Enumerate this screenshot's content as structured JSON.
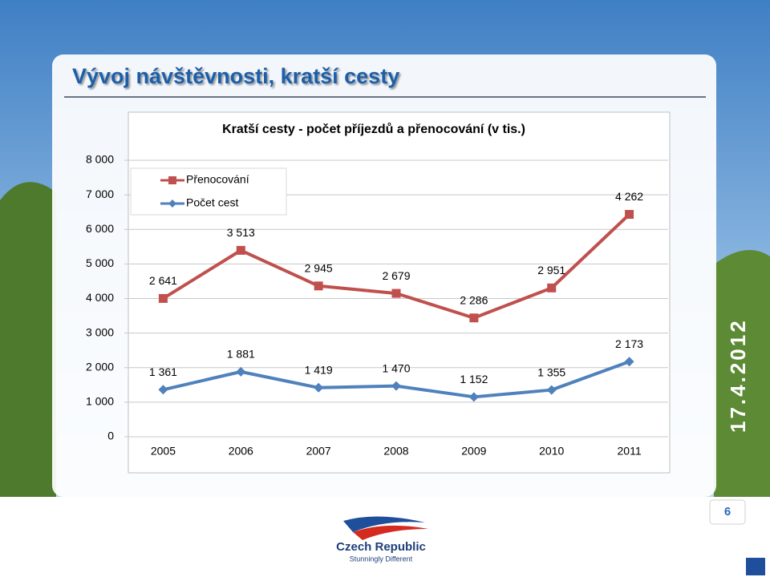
{
  "slide": {
    "title": "Vývoj návštěvnosti, kratší cesty",
    "date": "17.4.2012",
    "page_number": "6",
    "logo_name": "Czech Republic",
    "logo_tagline": "Stunningly Different"
  },
  "chart_data": {
    "type": "line",
    "title": "Kratší cesty - počet příjezdů a přenocování (v tis.)",
    "stacked": true,
    "legend": "top-left",
    "categories": [
      "2005",
      "2006",
      "2007",
      "2008",
      "2009",
      "2010",
      "2011"
    ],
    "series": [
      {
        "name": "Počet cest",
        "color": "#4f81bd",
        "marker": "diamond",
        "values": [
          1361,
          1881,
          1419,
          1470,
          1152,
          1355,
          2173
        ],
        "value_labels": [
          "1 361",
          "1 881",
          "1 419",
          "1 470",
          "1 152",
          "1 355",
          "2 173"
        ]
      },
      {
        "name": "Přenocování",
        "color": "#c0504d",
        "marker": "square",
        "values": [
          2641,
          3513,
          2945,
          2679,
          2286,
          2951,
          4262
        ],
        "value_labels": [
          "2 641",
          "3 513",
          "2 945",
          "2 679",
          "2 286",
          "2 951",
          "4 262"
        ]
      }
    ],
    "ylim": [
      0,
      8000
    ],
    "yticks": [
      0,
      {
        "value": 1000,
        "label": "1 000"
      },
      {
        "value": 2000,
        "label": "2 000"
      },
      {
        "value": 3000,
        "label": "3 000"
      },
      {
        "value": 4000,
        "label": "4 000"
      },
      {
        "value": 5000,
        "label": "5 000"
      },
      {
        "value": 6000,
        "label": "6 000"
      },
      {
        "value": 7000,
        "label": "7 000"
      },
      {
        "value": 8000,
        "label": "8 000"
      }
    ],
    "grid": true
  }
}
